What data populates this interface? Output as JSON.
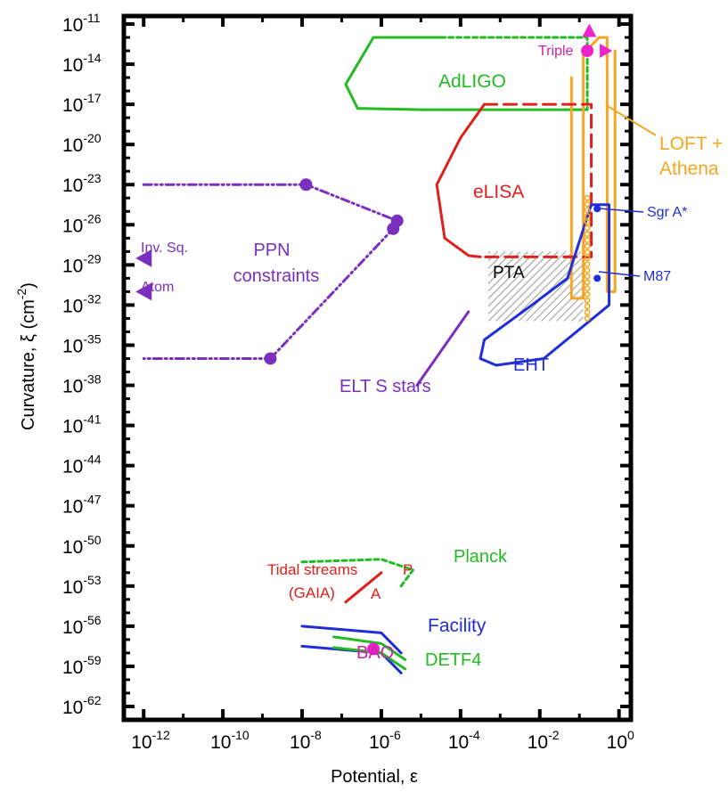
{
  "chart_data": {
    "type": "line",
    "title": "",
    "xlabel": "Potential, ε",
    "ylabel": "Curvature, ξ (cm",
    "ylabel_sup": "-2",
    "ylabel_close": ")",
    "xscale": "log",
    "yscale": "log",
    "xlim_log10": [
      -12.5,
      0.3
    ],
    "ylim_log10": [
      -63,
      -10.4
    ],
    "x_ticks": [
      {
        "exp": -12,
        "base": "10",
        "sup": "-12"
      },
      {
        "exp": -10,
        "base": "10",
        "sup": "-10"
      },
      {
        "exp": -8,
        "base": "10",
        "sup": "-8"
      },
      {
        "exp": -6,
        "base": "10",
        "sup": "-6"
      },
      {
        "exp": -4,
        "base": "10",
        "sup": "-4"
      },
      {
        "exp": -2,
        "base": "10",
        "sup": "-2"
      },
      {
        "exp": 0,
        "base": "10",
        "sup": "0"
      }
    ],
    "y_ticks": [
      {
        "exp": -11,
        "base": "10",
        "sup": "-11"
      },
      {
        "exp": -14,
        "base": "10",
        "sup": "-14"
      },
      {
        "exp": -17,
        "base": "10",
        "sup": "-17"
      },
      {
        "exp": -20,
        "base": "10",
        "sup": "-20"
      },
      {
        "exp": -23,
        "base": "10",
        "sup": "-23"
      },
      {
        "exp": -26,
        "base": "10",
        "sup": "-26"
      },
      {
        "exp": -29,
        "base": "10",
        "sup": "-29"
      },
      {
        "exp": -32,
        "base": "10",
        "sup": "-32"
      },
      {
        "exp": -35,
        "base": "10",
        "sup": "-35"
      },
      {
        "exp": -38,
        "base": "10",
        "sup": "-38"
      },
      {
        "exp": -41,
        "base": "10",
        "sup": "-41"
      },
      {
        "exp": -44,
        "base": "10",
        "sup": "-44"
      },
      {
        "exp": -47,
        "base": "10",
        "sup": "-47"
      },
      {
        "exp": -50,
        "base": "10",
        "sup": "-50"
      },
      {
        "exp": -53,
        "base": "10",
        "sup": "-53"
      },
      {
        "exp": -56,
        "base": "10",
        "sup": "-56"
      },
      {
        "exp": -59,
        "base": "10",
        "sup": "-59"
      },
      {
        "exp": -62,
        "base": "10",
        "sup": "-62"
      }
    ],
    "series": [
      {
        "name": "AdLIGO",
        "color": "#22bb22",
        "style": "solid",
        "points": [
          [
            -4.5,
            -12.0
          ],
          [
            -6.2,
            -12.0
          ],
          [
            -6.9,
            -15.5
          ],
          [
            -6.6,
            -17.3
          ],
          [
            -5.0,
            -17.4
          ],
          [
            -0.8,
            -17.4
          ]
        ]
      },
      {
        "name": "AdLIGO-upper",
        "color": "#22bb22",
        "style": "dotted",
        "points": [
          [
            -4.5,
            -12.0
          ],
          [
            -0.8,
            -12.0
          ],
          [
            -0.8,
            -17.4
          ]
        ]
      },
      {
        "name": "LOFT + Athena",
        "color": "#f5a623",
        "style": "solid",
        "points": [
          [
            -1.2,
            -15.0
          ],
          [
            -1.2,
            -31.5
          ],
          [
            -0.9,
            -31.5
          ],
          [
            -0.9,
            -13.2
          ],
          [
            -0.5,
            -12.0
          ],
          [
            -0.3,
            -12.0
          ],
          [
            -0.3,
            -31.0
          ],
          [
            -0.1,
            -31.0
          ],
          [
            -0.1,
            -13.0
          ]
        ]
      },
      {
        "name": "eLISA",
        "color": "#e0201c",
        "style": "solid",
        "points": [
          [
            -3.4,
            -17.0
          ],
          [
            -4.0,
            -19.5
          ],
          [
            -4.6,
            -23.0
          ],
          [
            -4.4,
            -27.0
          ],
          [
            -3.8,
            -28.3
          ],
          [
            -3.5,
            -28.4
          ]
        ]
      },
      {
        "name": "eLISA-bound",
        "color": "#e0201c",
        "style": "dashed",
        "points": [
          [
            -3.4,
            -17.0
          ],
          [
            -0.7,
            -17.0
          ],
          [
            -0.7,
            -28.4
          ],
          [
            -3.5,
            -28.4
          ]
        ]
      },
      {
        "name": "PPN constraints",
        "color": "#7b2fbe",
        "style": "dashdot",
        "points": [
          [
            -12.0,
            -23.0
          ],
          [
            -7.9,
            -23.0
          ],
          [
            -5.6,
            -25.7
          ],
          [
            -5.7,
            -26.3
          ],
          [
            -8.8,
            -36.0
          ],
          [
            -12.0,
            -36.0
          ]
        ]
      },
      {
        "name": "EHT",
        "color": "#1f2ed6",
        "style": "solid",
        "points": [
          [
            -0.7,
            -24.5
          ],
          [
            -0.25,
            -24.5
          ],
          [
            -0.25,
            -32.0
          ],
          [
            -1.9,
            -36.0
          ],
          [
            -3.1,
            -36.5
          ],
          [
            -3.5,
            -36.0
          ],
          [
            -3.4,
            -34.6
          ],
          [
            -2.2,
            -32.0
          ],
          [
            -1.3,
            -30.0
          ],
          [
            -0.7,
            -24.5
          ]
        ]
      },
      {
        "name": "ELT S stars",
        "color": "#7b2fbe",
        "style": "solid",
        "points": [
          [
            -5.1,
            -38.0
          ],
          [
            -3.8,
            -32.5
          ]
        ]
      },
      {
        "name": "Planck",
        "color": "#22bb22",
        "style": "dotted",
        "points": [
          [
            -8.0,
            -51.2
          ],
          [
            -6.0,
            -51.0
          ],
          [
            -5.2,
            -51.8
          ],
          [
            -5.5,
            -53.0
          ]
        ]
      },
      {
        "name": "Tidal streams (GAIA)",
        "color": "#e0201c",
        "style": "solid",
        "points": [
          [
            -6.9,
            -54.2
          ],
          [
            -6.0,
            -52.0
          ]
        ]
      },
      {
        "name": "Facility-1",
        "color": "#1f2ed6",
        "style": "solid",
        "points": [
          [
            -8.0,
            -56.0
          ],
          [
            -6.0,
            -56.5
          ],
          [
            -5.5,
            -58.0
          ]
        ]
      },
      {
        "name": "Facility-2",
        "color": "#1f2ed6",
        "style": "solid",
        "points": [
          [
            -8.0,
            -57.5
          ],
          [
            -6.0,
            -58.0
          ],
          [
            -5.5,
            -59.5
          ]
        ]
      },
      {
        "name": "DETF4-1",
        "color": "#22bb22",
        "style": "solid",
        "points": [
          [
            -7.2,
            -56.8
          ],
          [
            -6.0,
            -57.3
          ],
          [
            -5.4,
            -58.5
          ]
        ]
      },
      {
        "name": "DETF4-2",
        "color": "#22bb22",
        "style": "solid",
        "points": [
          [
            -7.2,
            -57.6
          ],
          [
            -6.0,
            -58.0
          ],
          [
            -5.4,
            -59.2
          ]
        ]
      }
    ],
    "markers": [
      {
        "name": "PPN point 1",
        "x": -7.9,
        "y": -23.0,
        "color": "#7b2fbe",
        "shape": "circle"
      },
      {
        "name": "PPN point 2",
        "x": -5.6,
        "y": -25.7,
        "color": "#7b2fbe",
        "shape": "circle"
      },
      {
        "name": "PPN point 3",
        "x": -5.7,
        "y": -26.3,
        "color": "#7b2fbe",
        "shape": "circle"
      },
      {
        "name": "PPN point 4",
        "x": -8.8,
        "y": -36.0,
        "color": "#7b2fbe",
        "shape": "circle"
      },
      {
        "name": "Triple",
        "x": -0.8,
        "y": -13.0,
        "color": "#ee22cc",
        "shape": "circle"
      },
      {
        "name": "Triple-up",
        "x": -0.75,
        "y": -11.5,
        "color": "#ee22cc",
        "shape": "triangle-up"
      },
      {
        "name": "Triple-right",
        "x": -0.35,
        "y": -13.0,
        "color": "#ee22cc",
        "shape": "triangle-right"
      },
      {
        "name": "Sgr A*",
        "x": -0.55,
        "y": -24.8,
        "color": "#1f2ed6",
        "shape": "dot"
      },
      {
        "name": "M87",
        "x": -0.55,
        "y": -30.0,
        "color": "#1f2ed6",
        "shape": "dot"
      },
      {
        "name": "BAO",
        "x": -6.2,
        "y": -57.7,
        "color": "#ee22cc",
        "shape": "circle"
      },
      {
        "name": "Inv. Sq.",
        "x": -12.0,
        "y": -28.5,
        "color": "#7b2fbe",
        "shape": "triangle-left"
      },
      {
        "name": "Atom",
        "x": -12.0,
        "y": -31.0,
        "color": "#7b2fbe",
        "shape": "triangle-left"
      }
    ],
    "pta_region": {
      "x": [
        -3.3,
        -0.9
      ],
      "y": [
        -28.0,
        -33.2
      ],
      "label": "PTA"
    },
    "orange_points_column": {
      "x": -0.8,
      "y_from": -24.0,
      "y_to": -33.0
    },
    "annotations": {
      "adligo": "AdLIGO",
      "loft1": "LOFT +",
      "loft2": "Athena",
      "elisa": "eLISA",
      "triple": "Triple",
      "sgra": "Sgr A*",
      "m87": "M87",
      "pta": "PTA",
      "ppn1": "PPN",
      "ppn2": "constraints",
      "invsq": "Inv. Sq.",
      "atom": "Atom",
      "eht": "EHT",
      "eltsstars": "ELT S stars",
      "planck": "Planck",
      "tidal1": "Tidal streams",
      "tidal2": "(GAIA)",
      "tidalP": "P",
      "tidalA": "A",
      "facility": "Facility",
      "bao": "BAO",
      "detf4": "DETF4"
    },
    "colors": {
      "green": "#22bb22",
      "orange": "#f5a623",
      "red": "#e0201c",
      "purple": "#7b2fbe",
      "blue": "#1f2ed6",
      "magenta": "#ee22cc"
    }
  }
}
